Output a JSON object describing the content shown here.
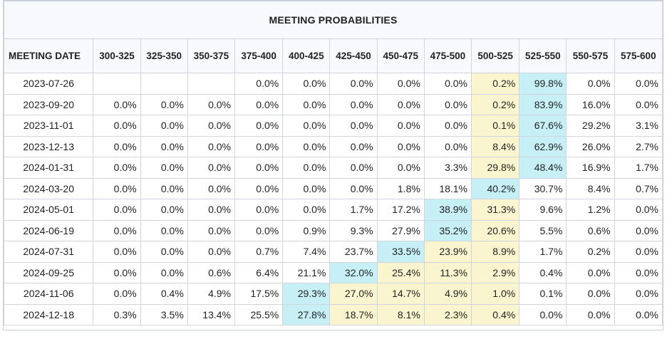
{
  "title": "MEETING PROBABILITIES",
  "date_header": "MEETING DATE",
  "columns": [
    "300-325",
    "325-350",
    "350-375",
    "375-400",
    "400-425",
    "425-450",
    "450-475",
    "475-500",
    "500-525",
    "525-550",
    "550-575",
    "575-600"
  ],
  "colors": {
    "highlight_blue": "#c7eff6",
    "highlight_yellow": "#faf5cf",
    "header_bg": "#f7f9fc",
    "border": "#d0d4dc"
  },
  "rows": [
    {
      "date": "2023-07-26",
      "values": [
        "",
        "",
        "",
        "0.0%",
        "0.0%",
        "0.0%",
        "0.0%",
        "0.0%",
        "0.2%",
        "99.8%",
        "0.0%",
        "0.0%"
      ],
      "blue": 9,
      "yellow": [
        8
      ]
    },
    {
      "date": "2023-09-20",
      "values": [
        "0.0%",
        "0.0%",
        "0.0%",
        "0.0%",
        "0.0%",
        "0.0%",
        "0.0%",
        "0.0%",
        "0.2%",
        "83.9%",
        "16.0%",
        "0.0%"
      ],
      "blue": 9,
      "yellow": [
        8
      ]
    },
    {
      "date": "2023-11-01",
      "values": [
        "0.0%",
        "0.0%",
        "0.0%",
        "0.0%",
        "0.0%",
        "0.0%",
        "0.0%",
        "0.0%",
        "0.1%",
        "67.6%",
        "29.2%",
        "3.1%"
      ],
      "blue": 9,
      "yellow": [
        8
      ]
    },
    {
      "date": "2023-12-13",
      "values": [
        "0.0%",
        "0.0%",
        "0.0%",
        "0.0%",
        "0.0%",
        "0.0%",
        "0.0%",
        "0.0%",
        "8.4%",
        "62.9%",
        "26.0%",
        "2.7%"
      ],
      "blue": 9,
      "yellow": [
        8
      ]
    },
    {
      "date": "2024-01-31",
      "values": [
        "0.0%",
        "0.0%",
        "0.0%",
        "0.0%",
        "0.0%",
        "0.0%",
        "0.0%",
        "3.3%",
        "29.8%",
        "48.4%",
        "16.9%",
        "1.7%"
      ],
      "blue": 9,
      "yellow": [
        8
      ]
    },
    {
      "date": "2024-03-20",
      "values": [
        "0.0%",
        "0.0%",
        "0.0%",
        "0.0%",
        "0.0%",
        "0.0%",
        "1.8%",
        "18.1%",
        "40.2%",
        "30.7%",
        "8.4%",
        "0.7%"
      ],
      "blue": 8,
      "yellow": []
    },
    {
      "date": "2024-05-01",
      "values": [
        "0.0%",
        "0.0%",
        "0.0%",
        "0.0%",
        "0.0%",
        "1.7%",
        "17.2%",
        "38.9%",
        "31.3%",
        "9.6%",
        "1.2%",
        "0.0%"
      ],
      "blue": 7,
      "yellow": [
        8
      ]
    },
    {
      "date": "2024-06-19",
      "values": [
        "0.0%",
        "0.0%",
        "0.0%",
        "0.0%",
        "0.9%",
        "9.3%",
        "27.9%",
        "35.2%",
        "20.6%",
        "5.5%",
        "0.6%",
        "0.0%"
      ],
      "blue": 7,
      "yellow": [
        8
      ]
    },
    {
      "date": "2024-07-31",
      "values": [
        "0.0%",
        "0.0%",
        "0.0%",
        "0.7%",
        "7.4%",
        "23.7%",
        "33.5%",
        "23.9%",
        "8.9%",
        "1.7%",
        "0.2%",
        "0.0%"
      ],
      "blue": 6,
      "yellow": [
        7,
        8
      ]
    },
    {
      "date": "2024-09-25",
      "values": [
        "0.0%",
        "0.0%",
        "0.6%",
        "6.4%",
        "21.1%",
        "32.0%",
        "25.4%",
        "11.3%",
        "2.9%",
        "0.4%",
        "0.0%",
        "0.0%"
      ],
      "blue": 5,
      "yellow": [
        6,
        7,
        8
      ]
    },
    {
      "date": "2024-11-06",
      "values": [
        "0.0%",
        "0.4%",
        "4.9%",
        "17.5%",
        "29.3%",
        "27.0%",
        "14.7%",
        "4.9%",
        "1.0%",
        "0.1%",
        "0.0%",
        "0.0%"
      ],
      "blue": 4,
      "yellow": [
        5,
        6,
        7,
        8
      ]
    },
    {
      "date": "2024-12-18",
      "values": [
        "0.3%",
        "3.5%",
        "13.4%",
        "25.5%",
        "27.8%",
        "18.7%",
        "8.1%",
        "2.3%",
        "0.4%",
        "0.0%",
        "0.0%",
        "0.0%"
      ],
      "blue": 4,
      "yellow": [
        5,
        6,
        7,
        8
      ]
    }
  ]
}
